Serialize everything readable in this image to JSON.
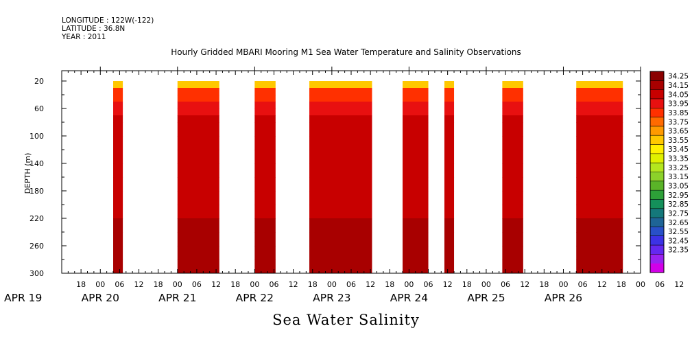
{
  "header": {
    "longitude": "LONGITUDE : 122W(-122)",
    "latitude": "LATITUDE : 36.8N",
    "year": "YEAR : 2011"
  },
  "colors": {
    "frame": "#000000",
    "background": "#ffffff"
  },
  "chart_data": {
    "type": "heatmap",
    "title": "Hourly Gridded MBARI Mooring M1 Sea Water Temperature and Salinity Observations",
    "variable_label": "Sea Water Salinity",
    "ylabel": "DEPTH (m)",
    "y_range": [
      300,
      5
    ],
    "y_ticks": [
      20,
      60,
      100,
      140,
      180,
      220,
      260,
      300
    ],
    "y_tick_labels": [
      "20",
      "60",
      "100",
      "140",
      "180",
      "220",
      "260",
      "300"
    ],
    "x_hour_labels": [
      "18",
      "00",
      "06",
      "12",
      "18",
      "00",
      "06",
      "12",
      "18",
      "00",
      "06",
      "12",
      "18",
      "00",
      "06",
      "12",
      "18",
      "00",
      "06",
      "12",
      "18",
      "00",
      "06",
      "12",
      "18",
      "00",
      "06",
      "12",
      "18",
      "00",
      "06",
      "12"
    ],
    "x_date_labels": [
      "APR 19",
      "APR 20",
      "APR 21",
      "APR 22",
      "APR 23",
      "APR 24",
      "APR 25",
      "APR 26"
    ],
    "x_unit": "hours since 2011-04-19 00:00",
    "x_range": [
      12,
      192
    ],
    "data_segments": [
      {
        "start": 28,
        "end": 31
      },
      {
        "start": 48,
        "end": 61
      },
      {
        "start": 72,
        "end": 78.5
      },
      {
        "start": 89,
        "end": 108.5
      },
      {
        "start": 118,
        "end": 126
      },
      {
        "start": 131,
        "end": 134
      },
      {
        "start": 149,
        "end": 155.5
      },
      {
        "start": 172,
        "end": 186.5
      }
    ],
    "profile_depths": [
      20,
      30,
      40,
      50,
      60,
      70,
      80,
      100,
      120,
      140,
      160,
      180,
      200,
      220,
      240,
      260,
      280,
      300
    ],
    "profile_salinity": [
      33.6,
      33.85,
      33.93,
      33.98,
      34.02,
      34.05,
      34.07,
      34.08,
      34.1,
      34.12,
      34.13,
      34.13,
      34.13,
      34.15,
      34.17,
      34.2,
      34.17,
      34.15
    ],
    "colorbar_levels": [
      "34.25",
      "34.15",
      "34.05",
      "33.95",
      "33.85",
      "33.75",
      "33.65",
      "33.55",
      "33.45",
      "33.35",
      "33.25",
      "33.15",
      "33.05",
      "32.95",
      "32.85",
      "32.75",
      "32.65",
      "32.55",
      "32.45",
      "32.35"
    ],
    "colorbar_colors": [
      "#8a0000",
      "#a80000",
      "#c80000",
      "#e81010",
      "#ff3000",
      "#ff6a00",
      "#ff9a00",
      "#ffc800",
      "#fff000",
      "#e0f000",
      "#b4e61e",
      "#8cd22a",
      "#5ab428",
      "#2da038",
      "#14905a",
      "#14787a",
      "#1e6496",
      "#2850c8",
      "#3c32e6",
      "#6428f0",
      "#9a22f0",
      "#d200e8"
    ]
  }
}
